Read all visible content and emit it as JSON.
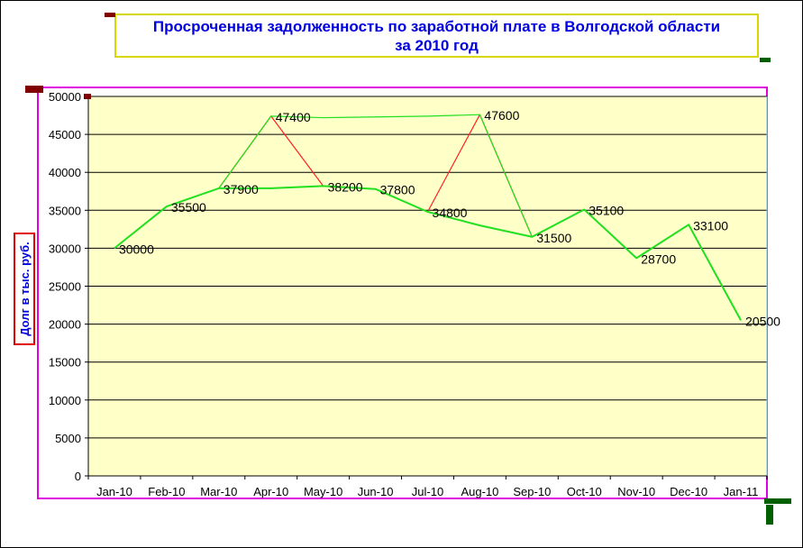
{
  "chart_data": {
    "type": "line",
    "title_lines": [
      "Просроченная задолженность по заработной плате в Волгодской области",
      "за 2010 год"
    ],
    "xlabel": "",
    "ylabel": "Долг в тыс. руб.",
    "categories": [
      "Jan-10",
      "Feb-10",
      "Mar-10",
      "Apr-10",
      "May-10",
      "Jun-10",
      "Jul-10",
      "Aug-10",
      "Sep-10",
      "Oct-10",
      "Nov-10",
      "Dec-10",
      "Jan-11"
    ],
    "series": [
      {
        "color": "#ff2020",
        "values": [
          30000,
          35500,
          37900,
          47400,
          38200,
          37800,
          34800,
          47600,
          31500,
          35100,
          28700,
          33100,
          20500
        ]
      },
      {
        "color": "#20e020",
        "values": [
          30000,
          35500,
          37900,
          47400,
          47200,
          47300,
          47400,
          47600,
          31500,
          35100,
          28700,
          33100,
          20500
        ]
      },
      {
        "color": "#20e020",
        "values": [
          30000,
          35500,
          37900,
          37900,
          38200,
          37800,
          34800,
          33000,
          31500,
          35100,
          28700,
          33100,
          20500
        ]
      }
    ],
    "data_labels": [
      30000,
      35500,
      37900,
      47400,
      38200,
      37800,
      34800,
      47600,
      31500,
      35100,
      28700,
      33100,
      20500
    ],
    "ylim": [
      0,
      50000
    ],
    "y_ticks": [
      0,
      5000,
      10000,
      15000,
      20000,
      25000,
      30000,
      35000,
      40000,
      45000,
      50000
    ],
    "grid": true,
    "legend": "none",
    "plot_background": "#ffffc8",
    "title_color": "#0000e0"
  }
}
